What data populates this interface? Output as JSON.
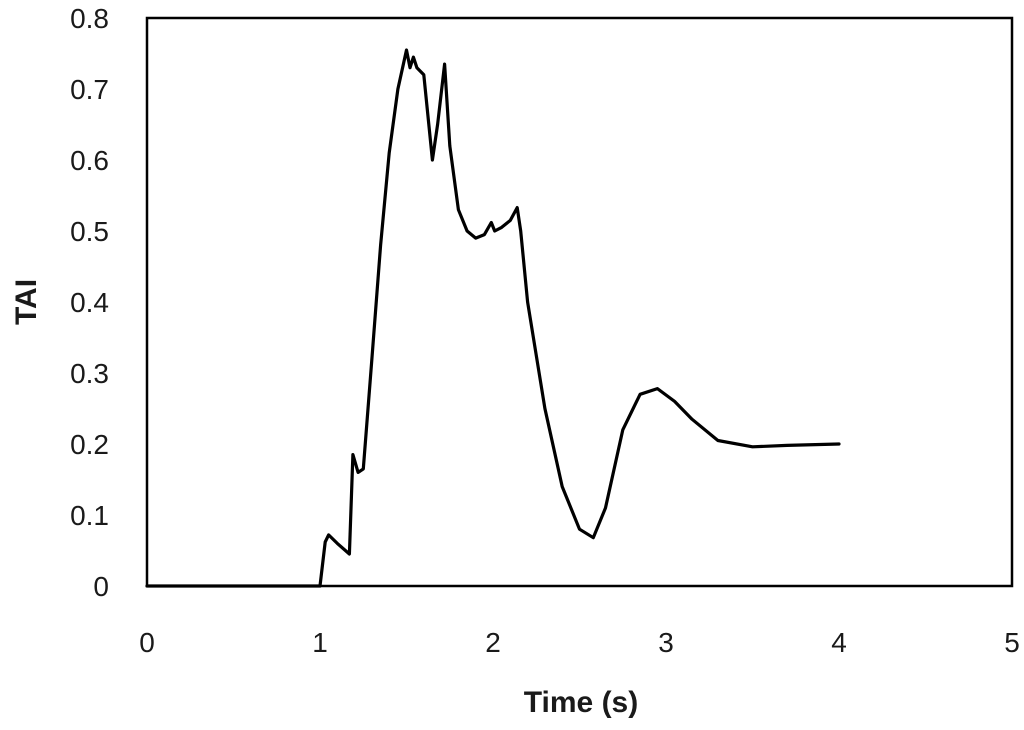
{
  "chart_data": {
    "type": "line",
    "title": "",
    "xlabel": "Time (s)",
    "ylabel": "TAI",
    "xlim": [
      0,
      5
    ],
    "ylim": [
      0,
      0.8
    ],
    "x_ticks": [
      0,
      1,
      2,
      3,
      4,
      5
    ],
    "y_ticks": [
      0,
      0.1,
      0.2,
      0.3,
      0.4,
      0.5,
      0.6,
      0.7,
      0.8
    ],
    "x_tick_labels": [
      "0",
      "1",
      "2",
      "3",
      "4",
      "5"
    ],
    "y_tick_labels": [
      "0",
      "0.1",
      "0.2",
      "0.3",
      "0.4",
      "0.5",
      "0.6",
      "0.7",
      "0.8"
    ],
    "grid": false,
    "legend": "none",
    "series": [
      {
        "color": "#000000",
        "x": [
          0,
          1.0,
          1.03,
          1.05,
          1.1,
          1.17,
          1.19,
          1.22,
          1.25,
          1.3,
          1.35,
          1.4,
          1.45,
          1.5,
          1.52,
          1.54,
          1.56,
          1.6,
          1.65,
          1.68,
          1.72,
          1.75,
          1.8,
          1.85,
          1.9,
          1.95,
          1.99,
          2.01,
          2.05,
          2.1,
          2.14,
          2.16,
          2.2,
          2.3,
          2.4,
          2.5,
          2.58,
          2.65,
          2.75,
          2.85,
          2.95,
          3.05,
          3.15,
          3.3,
          3.5,
          3.7,
          4.0
        ],
        "y": [
          0,
          0,
          0.062,
          0.072,
          0.06,
          0.045,
          0.185,
          0.16,
          0.165,
          0.32,
          0.48,
          0.61,
          0.7,
          0.755,
          0.73,
          0.745,
          0.73,
          0.72,
          0.6,
          0.65,
          0.735,
          0.62,
          0.53,
          0.5,
          0.49,
          0.495,
          0.512,
          0.5,
          0.505,
          0.515,
          0.533,
          0.5,
          0.4,
          0.25,
          0.14,
          0.08,
          0.068,
          0.11,
          0.22,
          0.27,
          0.278,
          0.26,
          0.235,
          0.205,
          0.196,
          0.198,
          0.2
        ]
      }
    ]
  }
}
